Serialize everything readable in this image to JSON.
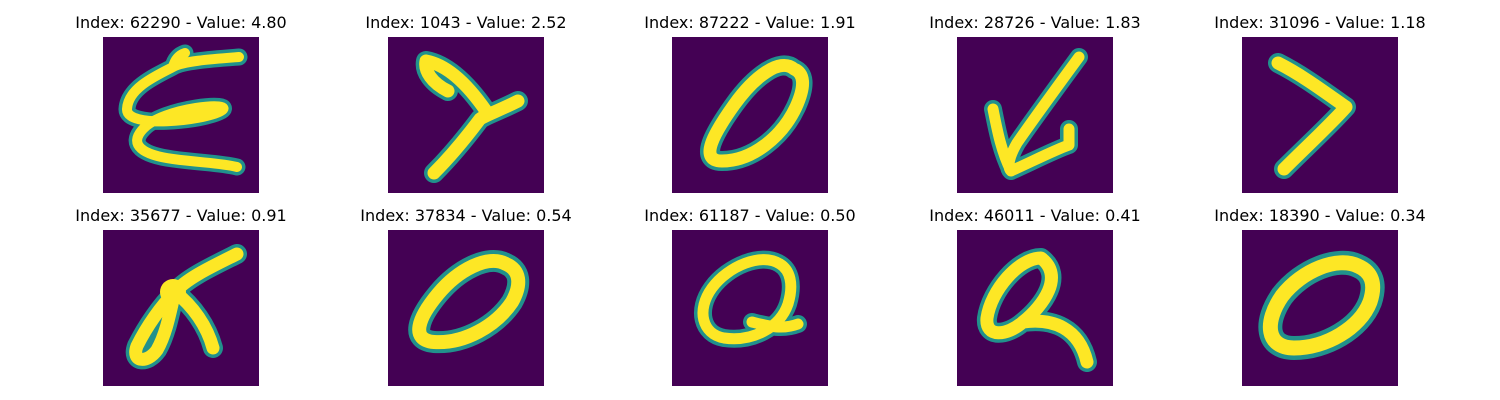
{
  "figure": {
    "background": "#ffffff",
    "colormap": {
      "low": "#440154",
      "mid": "#21918c",
      "high": "#fde725"
    },
    "panels": [
      {
        "index": "62290",
        "value": "4.80",
        "title": "Index: 62290 - Value: 4.80",
        "glyph": "epsilon-like stroke digit"
      },
      {
        "index": "1043",
        "value": "2.52",
        "title": "Index: 1043 - Value: 2.52",
        "glyph": "y-shaped stroke digit"
      },
      {
        "index": "87222",
        "value": "1.91",
        "title": "Index: 87222 - Value: 1.91",
        "glyph": "zero digit"
      },
      {
        "index": "28726",
        "value": "1.83",
        "title": "Index: 28726 - Value: 1.83",
        "glyph": "arrow-like stroke digit"
      },
      {
        "index": "31096",
        "value": "1.18",
        "title": "Index: 31096 - Value: 1.18",
        "glyph": "chevron digit"
      },
      {
        "index": "35677",
        "value": "0.91",
        "title": "Index: 35677 - Value: 0.91",
        "glyph": "looped stroke digit"
      },
      {
        "index": "37834",
        "value": "0.54",
        "title": "Index: 37834 - Value: 0.54",
        "glyph": "zero digit"
      },
      {
        "index": "61187",
        "value": "0.50",
        "title": "Index: 61187 - Value: 0.50",
        "glyph": "looped q-like digit"
      },
      {
        "index": "46011",
        "value": "0.41",
        "title": "Index: 46011 - Value: 0.41",
        "glyph": "q-like digit"
      },
      {
        "index": "18390",
        "value": "0.34",
        "title": "Index: 18390 - Value: 0.34",
        "glyph": "zero digit"
      }
    ]
  }
}
